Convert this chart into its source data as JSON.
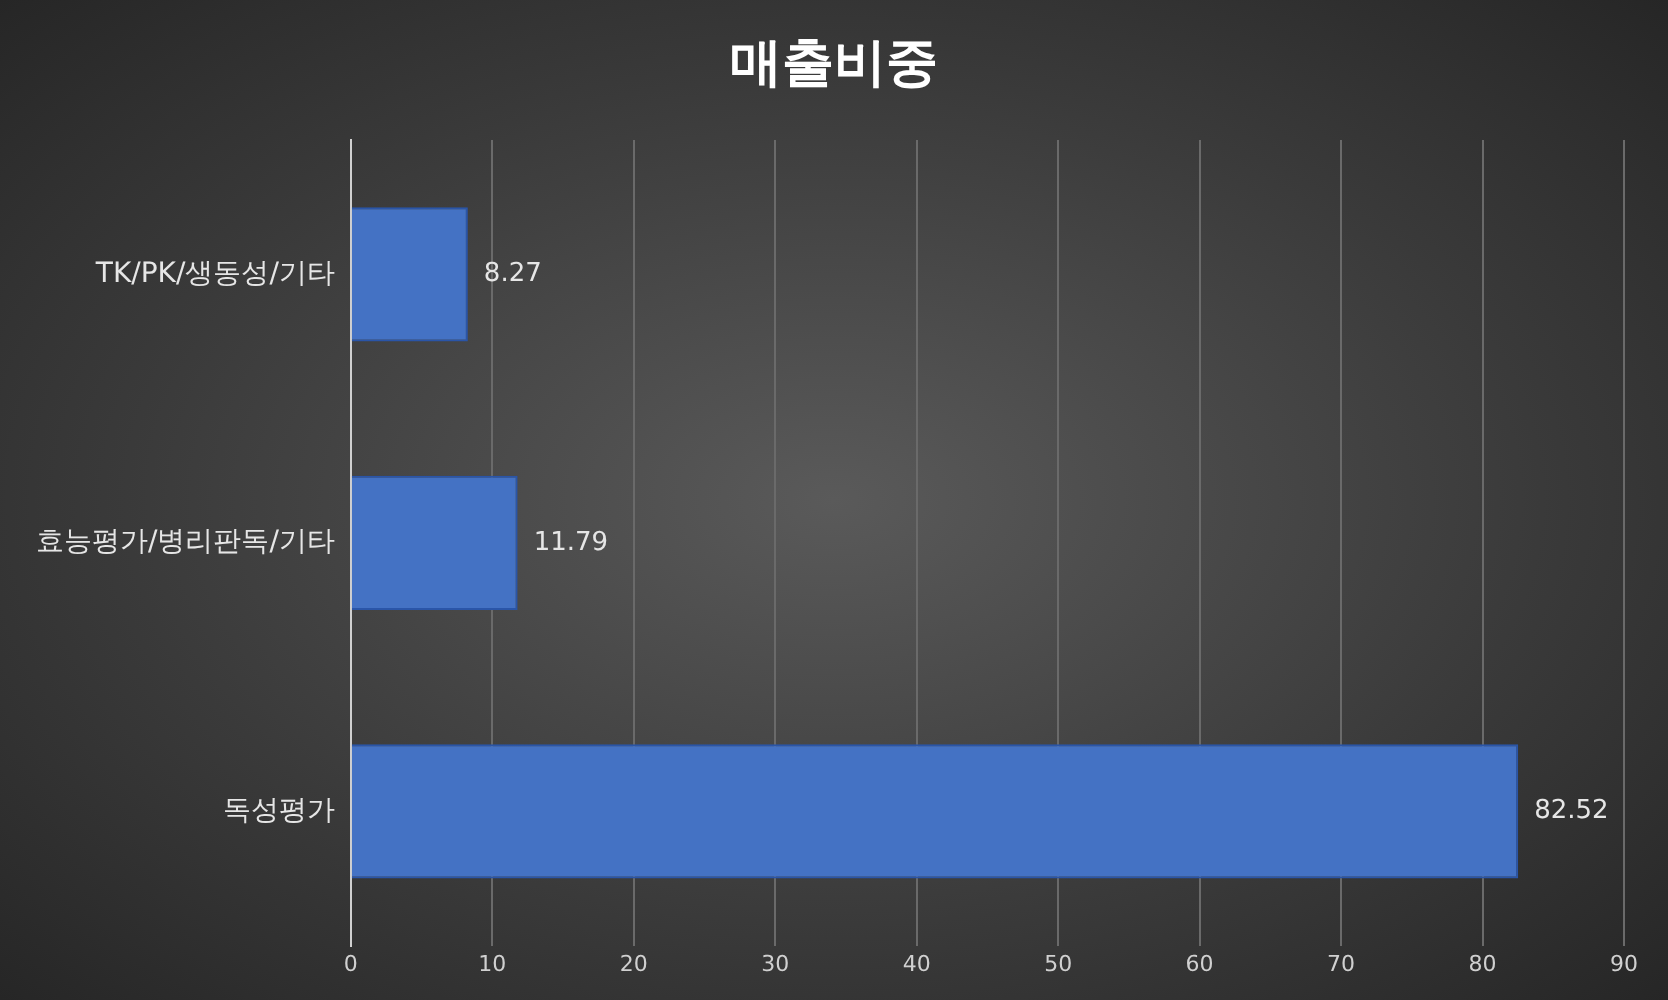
{
  "chart_data": {
    "type": "bar",
    "title": "매출비중",
    "orientation": "horizontal",
    "categories": [
      "TK/PK/생동성/기타",
      "효능평가/병리판독/기타",
      "독성평가"
    ],
    "values": [
      8.27,
      11.79,
      82.52
    ],
    "color": "#4472c4",
    "xlim": [
      0,
      90
    ],
    "xticks": [
      0,
      10,
      20,
      30,
      40,
      50,
      60,
      70,
      80,
      90
    ],
    "grid": "x",
    "data_labels": true,
    "legend": false
  }
}
